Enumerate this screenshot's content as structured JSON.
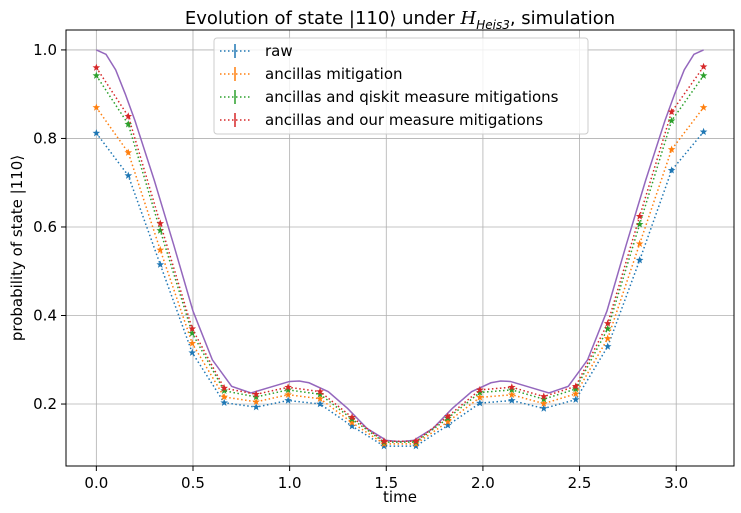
{
  "chart_data": {
    "type": "line",
    "title_prefix": "Evolution of state |110⟩ under ",
    "title_math_base": "H",
    "title_math_sub": "Heis3",
    "title_suffix": ", simulation",
    "xlabel": "time",
    "ylabel": "probability of state |110⟩",
    "xlim": [
      -0.157,
      3.299
    ],
    "ylim": [
      0.06,
      1.045
    ],
    "xticks": [
      0.0,
      0.5,
      1.0,
      1.5,
      2.0,
      2.5,
      3.0
    ],
    "xtick_labels": [
      "0.0",
      "0.5",
      "1.0",
      "1.5",
      "2.0",
      "2.5",
      "3.0"
    ],
    "yticks": [
      0.2,
      0.4,
      0.6,
      0.8,
      1.0
    ],
    "ytick_labels": [
      "0.2",
      "0.4",
      "0.6",
      "0.8",
      "1.0"
    ],
    "grid": true,
    "legend_position": "top-center",
    "x": [
      0.0,
      0.1653,
      0.3307,
      0.496,
      0.6614,
      0.8267,
      0.9921,
      1.1574,
      1.3228,
      1.4881,
      1.6535,
      1.8188,
      1.9842,
      2.1495,
      2.3149,
      2.4802,
      2.6456,
      2.8109,
      2.9762,
      3.1416
    ],
    "series": [
      {
        "name": "raw",
        "color": "#1f77b4",
        "values": [
          0.812,
          0.716,
          0.515,
          0.316,
          0.203,
          0.193,
          0.208,
          0.2,
          0.15,
          0.105,
          0.105,
          0.152,
          0.202,
          0.208,
          0.19,
          0.21,
          0.33,
          0.525,
          0.728,
          0.815
        ]
      },
      {
        "name": "ancillas mitigation",
        "color": "#ff7f0e",
        "values": [
          0.87,
          0.768,
          0.548,
          0.337,
          0.216,
          0.205,
          0.221,
          0.212,
          0.158,
          0.11,
          0.11,
          0.16,
          0.215,
          0.221,
          0.201,
          0.223,
          0.348,
          0.562,
          0.775,
          0.87
        ]
      },
      {
        "name": "ancillas and qiskit measure mitigations",
        "color": "#2ca02c",
        "values": [
          0.942,
          0.832,
          0.592,
          0.36,
          0.23,
          0.216,
          0.232,
          0.222,
          0.166,
          0.114,
          0.114,
          0.168,
          0.226,
          0.232,
          0.211,
          0.234,
          0.37,
          0.606,
          0.84,
          0.942
        ]
      },
      {
        "name": "ancillas and our measure mitigations",
        "color": "#d62728",
        "values": [
          0.96,
          0.85,
          0.608,
          0.37,
          0.236,
          0.222,
          0.238,
          0.228,
          0.17,
          0.116,
          0.116,
          0.172,
          0.232,
          0.238,
          0.217,
          0.24,
          0.382,
          0.624,
          0.86,
          0.962
        ]
      }
    ],
    "theory_curve": {
      "color": "#9467bd",
      "x": [
        0.0,
        0.05,
        0.1,
        0.15,
        0.2,
        0.3,
        0.4,
        0.5,
        0.6,
        0.7,
        0.8,
        0.9,
        1.0,
        1.05,
        1.1,
        1.2,
        1.3,
        1.4,
        1.5,
        1.5708,
        1.6416,
        1.7416,
        1.8416,
        1.9416,
        2.0416,
        2.0916,
        2.1416,
        2.2416,
        2.3416,
        2.4416,
        2.5416,
        2.6416,
        2.7416,
        2.8416,
        2.9416,
        2.9916,
        3.0416,
        3.0916,
        3.1416
      ],
      "values": [
        1.0,
        0.99,
        0.955,
        0.9,
        0.84,
        0.705,
        0.56,
        0.41,
        0.3,
        0.24,
        0.225,
        0.238,
        0.251,
        0.252,
        0.248,
        0.228,
        0.19,
        0.145,
        0.118,
        0.115,
        0.118,
        0.145,
        0.19,
        0.228,
        0.248,
        0.252,
        0.251,
        0.238,
        0.225,
        0.24,
        0.3,
        0.41,
        0.56,
        0.705,
        0.84,
        0.9,
        0.955,
        0.99,
        1.0
      ]
    }
  }
}
